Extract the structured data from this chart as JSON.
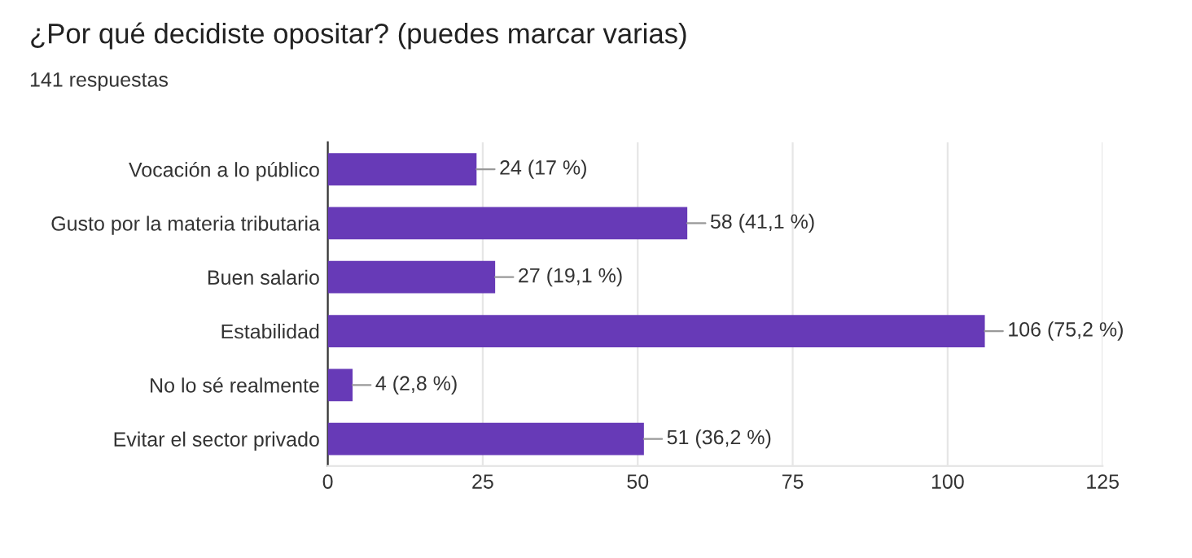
{
  "chart_data": {
    "type": "bar",
    "orientation": "horizontal",
    "title": "¿Por qué decidiste opositar? (puedes marcar varias)",
    "subtitle": "141 respuestas",
    "categories": [
      "Vocación a lo público",
      "Gusto por la materia tributaria",
      "Buen salario",
      "Estabilidad",
      "No lo sé realmente",
      "Evitar el sector privado"
    ],
    "values": [
      24,
      58,
      27,
      106,
      4,
      51
    ],
    "value_labels": [
      "24 (17 %)",
      "58 (41,1 %)",
      "27 (19,1 %)",
      "106 (75,2 %)",
      "4 (2,8 %)",
      "51 (36,2 %)"
    ],
    "color": "#673ab7",
    "xlim": [
      0,
      125
    ],
    "xticks": [
      0,
      25,
      50,
      75,
      100,
      125
    ],
    "grid": "x",
    "legend": false
  }
}
